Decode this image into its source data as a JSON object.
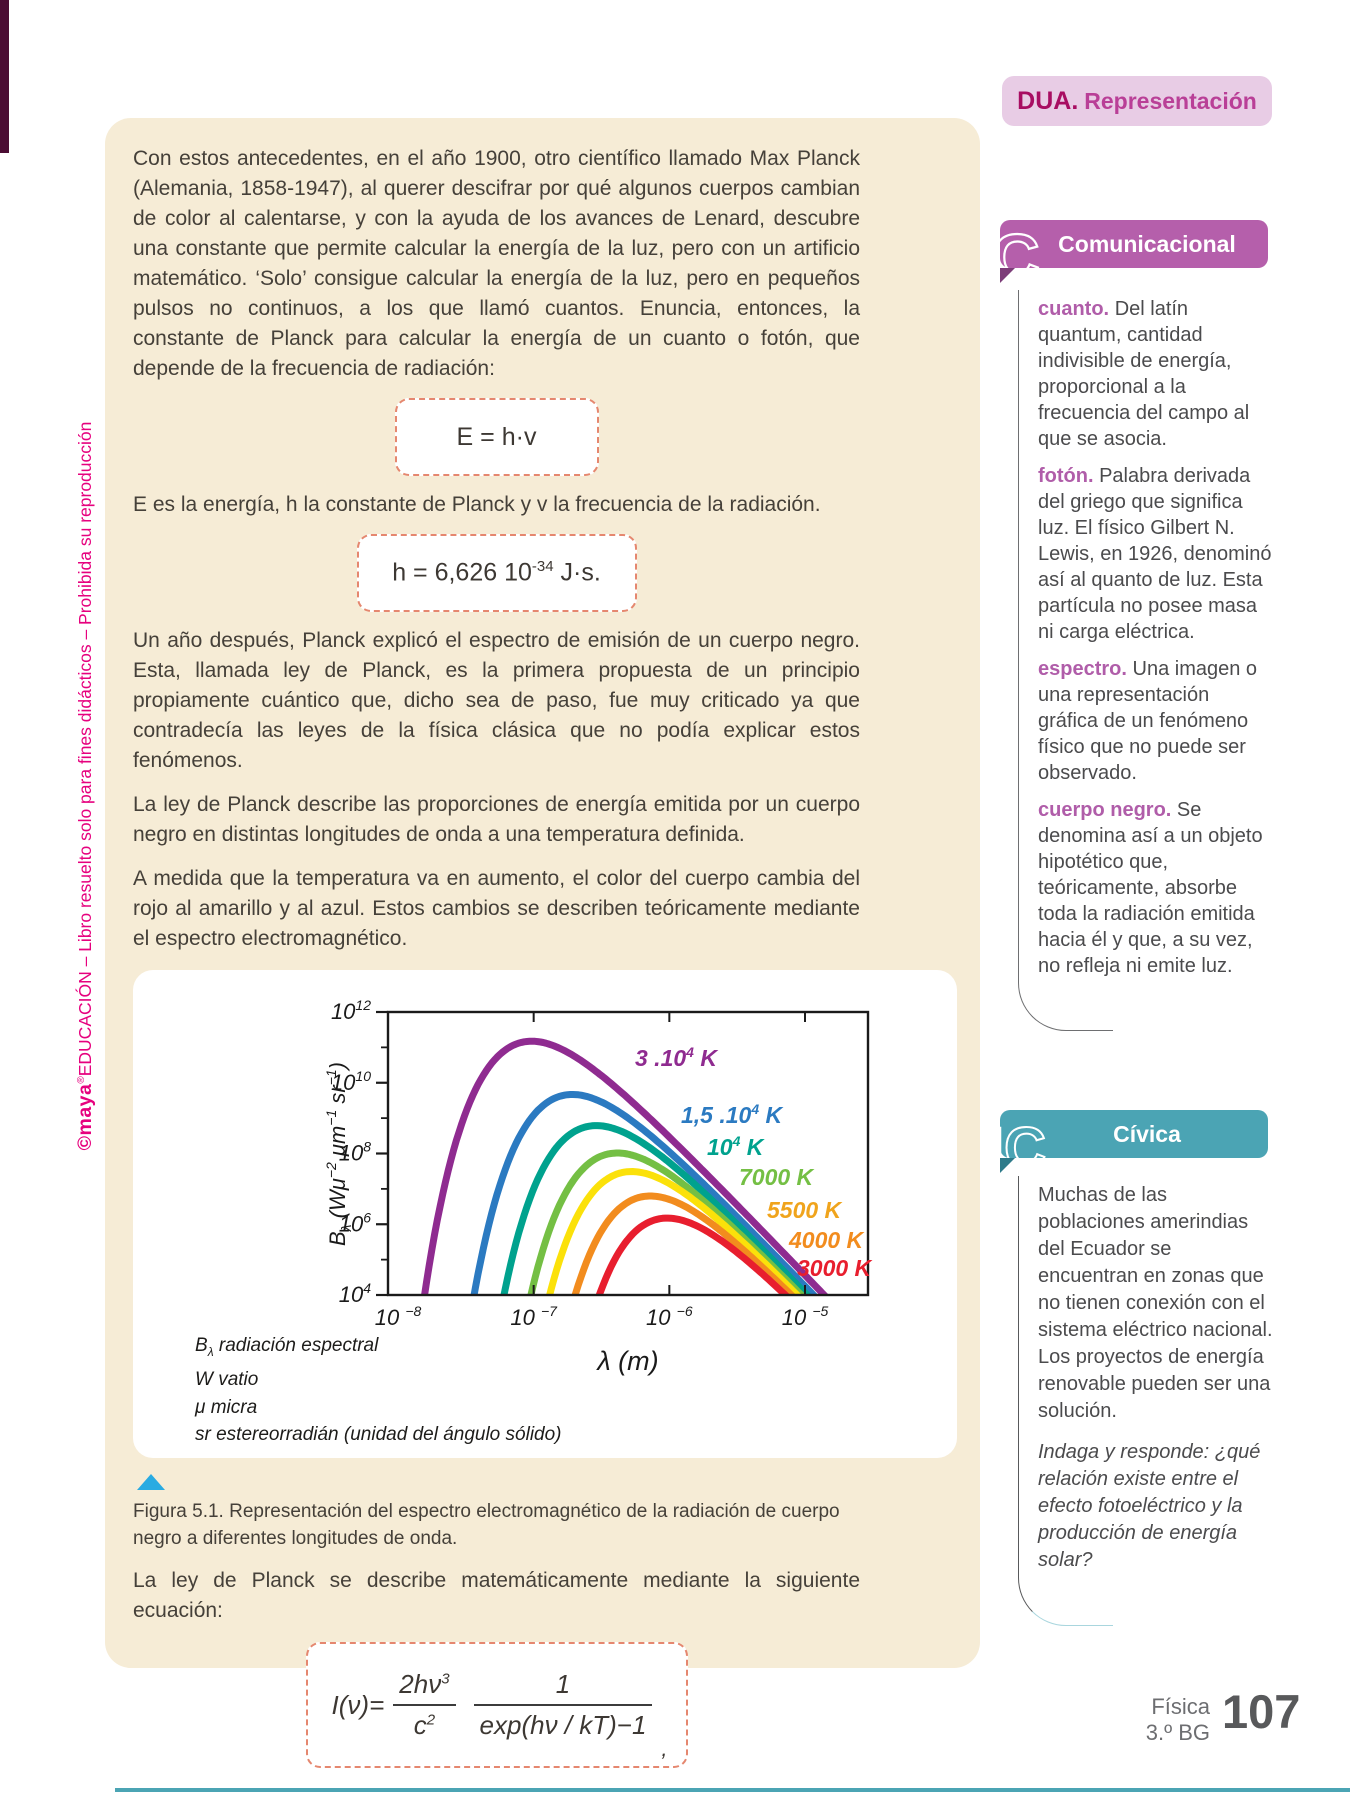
{
  "page": {
    "dua": {
      "label": "DUA.",
      "title": "Representación"
    },
    "watermark": {
      "brand": "©maya",
      "reg": "®",
      "text": "EDUCACIÓN – Libro resuelto solo para fines didácticos – Prohibida su reproducción"
    },
    "footer": {
      "subject": "Física",
      "grade": "3.º BG",
      "page_number": "107"
    }
  },
  "main": {
    "p1": "Con estos antecedentes, en el año 1900, otro científico llamado Max Planck (Alemania, 1858-1947), al querer descifrar por qué algunos cuerpos cambian de color al calentarse, y con la ayuda de los avances de Lenard, descubre una constante que permite calcular la energía de la luz, pero con un artificio matemático. ‘Solo’ consigue calcular la energía de la luz, pero en pequeños pulsos no continuos, a los que llamó cuantos. Enuncia, entonces, la constante de Planck para calcular la energía de un cuanto o fotón, que depende de la frecuencia de radiación:",
    "eq_energy": "E = h·v",
    "p2": "E es la energía, h la constante de Planck y v la frecuencia de la radiación.",
    "eq_planck_constant": {
      "base": "h = 6,626 10",
      "sup": "-34",
      "tail": " J·s."
    },
    "p3": "Un año después, Planck explicó el espectro de emisión de un cuerpo negro. Esta, llamada ley de Planck, es la primera propuesta de un principio propiamente cuántico que, dicho sea de paso, fue muy criticado ya que contradecía las leyes de la física clásica que no podía explicar estos fenómenos.",
    "p4": "La ley de Planck describe las proporciones de energía emitida por un cuerpo negro en distintas longitudes de onda a una temperatura definida.",
    "p5": "A medida que la temperatura va en aumento, el color del cuerpo cambia del rojo al amarillo y al azul. Estos cambios se describen teóricamente mediante el espectro electromagnético.",
    "figure_caption": "Figura 5.1. Representación del espectro electromagnético de la radiación de cuerpo negro a diferentes longitudes de onda.",
    "p6": "La ley de Planck se describe matemáticamente mediante la siguiente ecuación:",
    "eq_planck_law": {
      "lhs": "I(ν)=",
      "f1_num_base": "2hν",
      "f1_num_sup": "3",
      "f1_den_base": "c",
      "f1_den_sup": "2",
      "f2_num": "1",
      "f2_den": "exp(hν / kT)−1",
      "tail": ","
    }
  },
  "sidebar": {
    "comunicacional": {
      "icon": "C",
      "title": "Comunicacional",
      "entries": [
        {
          "term": "cuanto.",
          "definition": "Del latín quantum, cantidad indivisible de energía, proporcional a la frecuencia del campo al que se asocia."
        },
        {
          "term": "fotón.",
          "definition": "Palabra derivada del griego que significa luz. El físico Gilbert N. Lewis, en 1926, denominó así al quanto de luz. Esta partícula no posee masa ni carga eléctrica."
        },
        {
          "term": "espectro.",
          "definition": "Una imagen o una representación gráfica de un fenómeno físico que no puede ser observado."
        },
        {
          "term": "cuerpo negro.",
          "definition": "Se denomina así a un objeto hipotético que, teóricamente, absorbe toda la radiación emitida hacia él y que, a su vez, no refleja ni emite luz."
        }
      ]
    },
    "civica": {
      "icon": "IC",
      "title": "Cívica",
      "text": "Muchas de las poblaciones amerindias del Ecuador se encuentran en zonas que no tienen conexión con el sistema eléctrico nacional. Los proyectos de energía renovable pueden ser una solución.",
      "question": "Indaga y responde: ¿qué relación existe entre el efecto fotoeléctrico y la producción de energía solar?"
    }
  },
  "chart_data": {
    "type": "line",
    "title": "",
    "xlabel": "λ (m)",
    "ylabel": "Bλ (Wμ−2 μm−1 sr−1)",
    "ylabel_parts": [
      {
        "t": "B"
      },
      {
        "t": "λ",
        "shift": "sub"
      },
      {
        "t": " (Wμ"
      },
      {
        "t": "−2",
        "shift": "sup"
      },
      {
        "t": " μm"
      },
      {
        "t": "−1",
        "shift": "sup"
      },
      {
        "t": " sr"
      },
      {
        "t": "−1",
        "shift": "sup"
      },
      {
        "t": ")"
      }
    ],
    "x_axis": {
      "scale": "log",
      "tick_exponents": [
        -8,
        -7,
        -6,
        -5
      ],
      "range_log10": [
        -8.07,
        -4.54
      ]
    },
    "y_axis": {
      "scale": "log",
      "tick_exponents": [
        12,
        10,
        8,
        6,
        4
      ],
      "minor_exponents": [
        11,
        9,
        7,
        5
      ],
      "range_log10": [
        4,
        12
      ]
    },
    "grid": false,
    "legend_position": "labels-beside-curves",
    "series": [
      {
        "temperature_K": 30000,
        "label": {
          "base": "3 .10",
          "sup": "4",
          "tail": " K"
        },
        "color": "#8f2b90",
        "label_color": "#8f2b90",
        "peak": {
          "wavelength_m": 9.7e-08,
          "radiance": 150000000000.0
        }
      },
      {
        "temperature_K": 15000,
        "label": {
          "base": "1,5 .10",
          "sup": "4",
          "tail": " K"
        },
        "color": "#2b7ac1",
        "label_color": "#2b7ac1",
        "peak": {
          "wavelength_m": 1.9e-07,
          "radiance": 4700000000.0
        }
      },
      {
        "temperature_K": 10000,
        "label": {
          "base": "10",
          "sup": "4",
          "tail": " K"
        },
        "color": "#00a28e",
        "label_color": "#00a28e",
        "peak": {
          "wavelength_m": 2.9e-07,
          "radiance": 610000000.0
        }
      },
      {
        "temperature_K": 7000,
        "label": {
          "base": "7000 K"
        },
        "color": "#74bf44",
        "label_color": "#74bf44",
        "peak": {
          "wavelength_m": 4.1e-07,
          "radiance": 100000000.0
        }
      },
      {
        "temperature_K": 5500,
        "label": {
          "base": "5500 K"
        },
        "color": "#fbe10a",
        "label_color": "#f0a41c",
        "peak": {
          "wavelength_m": 5.3e-07,
          "radiance": 31000000.0
        }
      },
      {
        "temperature_K": 4000,
        "label": {
          "base": "4000 K"
        },
        "color": "#f28c1e",
        "label_color": "#f28c1e",
        "peak": {
          "wavelength_m": 7.2e-07,
          "radiance": 6300000.0
        }
      },
      {
        "temperature_K": 3000,
        "label": {
          "base": "3000 K"
        },
        "color": "#e81e2e",
        "label_color": "#e81e2e",
        "peak": {
          "wavelength_m": 9.7e-07,
          "radiance": 1500000.0
        }
      }
    ],
    "legend_notes": [
      {
        "symbol": "B",
        "symbol_sub": "λ",
        "text": "  radiación espectral"
      },
      {
        "symbol": "W",
        "text": " vatio"
      },
      {
        "symbol": "μ",
        "text": " micra"
      },
      {
        "symbol": "sr",
        "text": " estereorradián (unidad del ángulo sólido)"
      }
    ]
  }
}
